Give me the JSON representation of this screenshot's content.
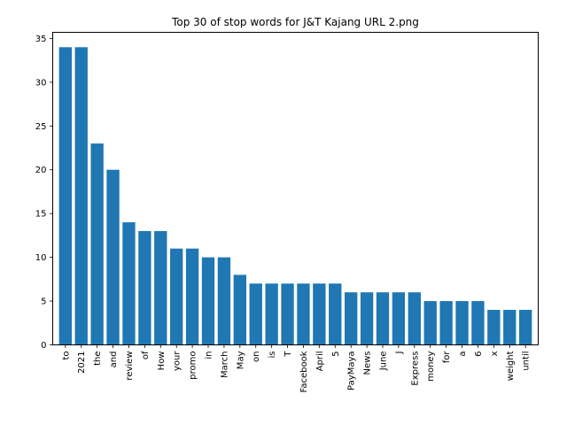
{
  "chart_data": {
    "type": "bar",
    "title": "Top 30 of stop words for J&T Kajang URL 2.png",
    "xlabel": "",
    "ylabel": "",
    "ylim": [
      0,
      35.7
    ],
    "yticks": [
      0,
      5,
      10,
      15,
      20,
      25,
      30,
      35
    ],
    "grid": false,
    "bar_color": "#1f77b4",
    "categories": [
      "to",
      "2021",
      "the",
      "and",
      "review",
      "of",
      "How",
      "your",
      "promo",
      "in",
      "March",
      "May",
      "on",
      "is",
      "T",
      "Facebook",
      "April",
      "5",
      "PayMaya",
      "News",
      "June",
      "J",
      "Express",
      "money",
      "for",
      "a",
      "6",
      "x",
      "weight",
      "until"
    ],
    "values": [
      34,
      34,
      23,
      20,
      14,
      13,
      13,
      11,
      11,
      10,
      10,
      8,
      7,
      7,
      7,
      7,
      7,
      7,
      6,
      6,
      6,
      6,
      6,
      5,
      5,
      5,
      5,
      4,
      4,
      4
    ]
  }
}
